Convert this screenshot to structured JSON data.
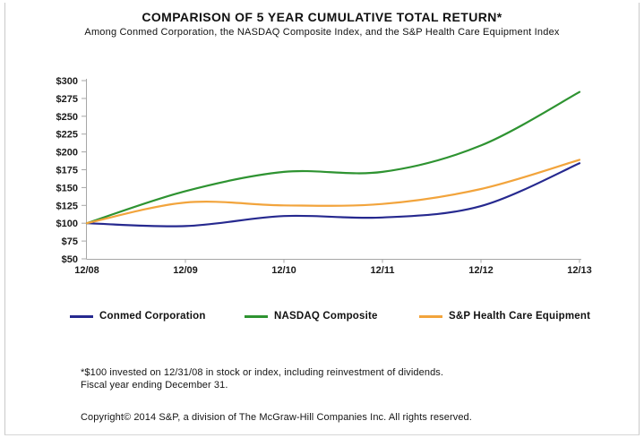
{
  "header": {
    "title": "COMPARISON OF 5 YEAR CUMULATIVE TOTAL RETURN*",
    "subtitle": "Among Conmed Corporation, the NASDAQ Composite Index, and the S&P Health Care Equipment Index"
  },
  "chart_data": {
    "type": "line",
    "title": "COMPARISON OF 5 YEAR CUMULATIVE TOTAL RETURN*",
    "subtitle": "Among Conmed Corporation, the NASDAQ Composite Index, and the S&P Health Care Equipment Index",
    "x_labels": [
      "12/08",
      "12/09",
      "12/10",
      "12/11",
      "12/12",
      "12/13"
    ],
    "series": [
      {
        "name": "Conmed Corporation",
        "color": "#26298F",
        "values": [
          100,
          96,
          110,
          108,
          124,
          184
        ]
      },
      {
        "name": "NASDAQ Composite",
        "color": "#2E9331",
        "values": [
          100,
          145,
          172,
          172,
          209,
          284
        ]
      },
      {
        "name": "S&P Health Care Equipment",
        "color": "#F2A43C",
        "values": [
          100,
          129,
          125,
          127,
          148,
          189
        ]
      }
    ],
    "ylim": [
      50,
      300
    ],
    "ytick_step": 25,
    "y_tick_labels": [
      "$50",
      "$75",
      "$100",
      "$125",
      "$150",
      "$175",
      "$200",
      "$225",
      "$250",
      "$275",
      "$300"
    ],
    "grid": false,
    "legend_position": "bottom",
    "axis_color": "#A6A6A6",
    "text_color": "#1A1A1A"
  },
  "legend": {
    "item_offsets": [
      78,
      273,
      468
    ]
  },
  "footnotes": {
    "line1": "*$100 invested on 12/31/08 in stock or index, including reinvestment of dividends.",
    "line2": "Fiscal year ending December 31.",
    "copyright": "Copyright© 2014 S&P, a division of The McGraw-Hill Companies Inc. All rights reserved."
  }
}
